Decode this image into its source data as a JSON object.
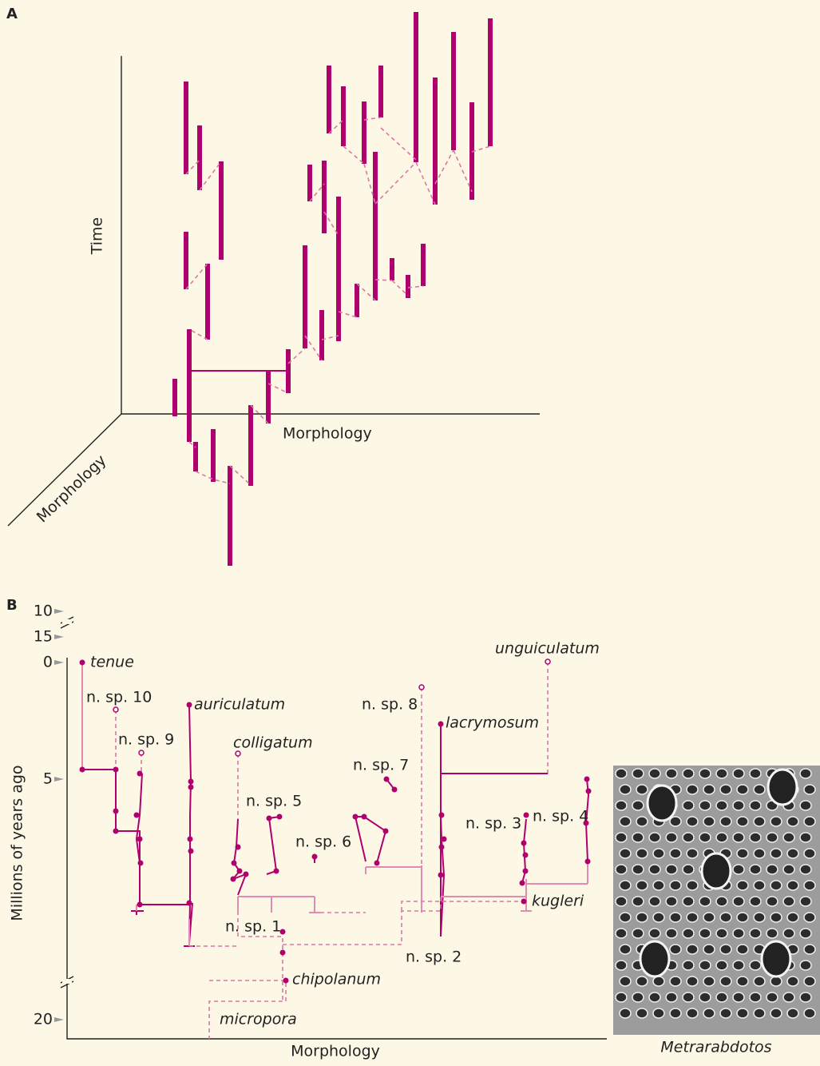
{
  "panel_a": {
    "label": "A",
    "y_axis": "Time",
    "x_axis": "Morphology",
    "z_axis": "Morphology"
  },
  "panel_b": {
    "label": "B",
    "y_axis": "Millions of years ago",
    "x_axis": "Morphology",
    "yticks": [
      0,
      5,
      10,
      15,
      20
    ],
    "species": [
      "tenue",
      "n. sp. 10",
      "n. sp. 9",
      "auriculatum",
      "colligatum",
      "n. sp. 5",
      "n. sp. 6",
      "n. sp. 7",
      "n. sp. 8",
      "lacrymosum",
      "unguiculatum",
      "n. sp. 3",
      "n. sp. 4",
      "kugleri",
      "n. sp. 1",
      "n. sp. 2",
      "chipolanum",
      "micropora"
    ]
  },
  "photo": {
    "caption": "Metrarabdotos"
  }
}
